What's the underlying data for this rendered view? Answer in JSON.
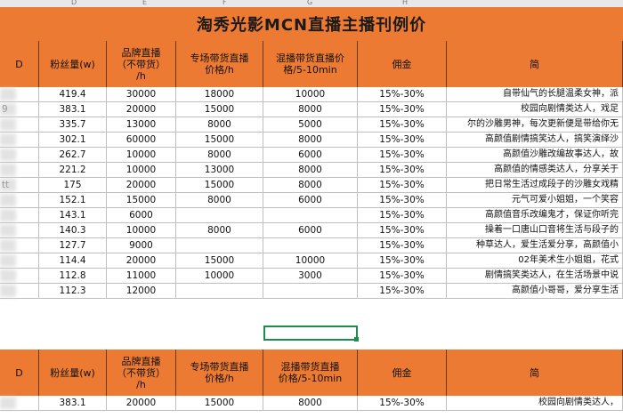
{
  "sheet": {
    "column_letters": [
      "D",
      "E",
      "F",
      "G",
      "H"
    ],
    "title": "淘秀光影MCN直播主播刊例价",
    "headers": [
      "D",
      "粉丝量(w)",
      "品牌直播\n（不带货）\n/h",
      "专场带货直播\n价格/h",
      "混播带货直播价\n格/5-10min",
      "佣金",
      "简"
    ],
    "rows": [
      {
        "name": "",
        "fans": "419.4",
        "brand": "30000",
        "special": "18000",
        "mixed": "10000",
        "commission": "15%-30%",
        "desc": "自带仙气的长腿温柔女神，派"
      },
      {
        "name": "9",
        "fans": "383.1",
        "brand": "20000",
        "special": "15000",
        "mixed": "8000",
        "commission": "15%-30%",
        "desc": "校园向剧情类达人，戏足"
      },
      {
        "name": "",
        "fans": "335.7",
        "brand": "13000",
        "special": "8000",
        "mixed": "5000",
        "commission": "15%-30%",
        "desc": "尔的沙雕男神，每次更新便是带给你无"
      },
      {
        "name": "",
        "fans": "302.1",
        "brand": "60000",
        "special": "15000",
        "mixed": "8000",
        "commission": "15%-30%",
        "desc": "高颜值剧情搞笑达人，搞笑演绎沙"
      },
      {
        "name": "",
        "fans": "262.7",
        "brand": "10000",
        "special": "8000",
        "mixed": "6000",
        "commission": "15%-30%",
        "desc": "高颜值沙雕改编故事达人，故"
      },
      {
        "name": "",
        "fans": "221.2",
        "brand": "10000",
        "special": "13000",
        "mixed": "8000",
        "commission": "15%-30%",
        "desc": "高颜值的情感类达人，分享关于"
      },
      {
        "name": "tt",
        "fans": "175",
        "brand": "20000",
        "special": "15000",
        "mixed": "8000",
        "commission": "15%-30%",
        "desc": "把日常生活过成段子的沙雕女戏精"
      },
      {
        "name": "",
        "fans": "152.1",
        "brand": "15000",
        "special": "8000",
        "mixed": "6000",
        "commission": "15%-30%",
        "desc": "元气可爱小姐姐，一个笑容"
      },
      {
        "name": "",
        "fans": "143.1",
        "brand": "6000",
        "special": "",
        "mixed": "",
        "commission": "15%-30%",
        "desc": "高颜值音乐改编鬼才，保证你听完"
      },
      {
        "name": "",
        "fans": "140.3",
        "brand": "10000",
        "special": "8000",
        "mixed": "6000",
        "commission": "15%-30%",
        "desc": "操着一口唐山口音将生活与段子的"
      },
      {
        "name": "",
        "fans": "127.7",
        "brand": "9000",
        "special": "",
        "mixed": "",
        "commission": "15%-30%",
        "desc": "种草达人，爱生活爱分享，高颜值小"
      },
      {
        "name": "",
        "fans": "114.4",
        "brand": "20000",
        "special": "15000",
        "mixed": "10000",
        "commission": "15%-30%",
        "desc": "02年美术生小姐姐，花式"
      },
      {
        "name": "",
        "fans": "112.8",
        "brand": "11000",
        "special": "10000",
        "mixed": "3000",
        "commission": "15%-30%",
        "desc": "剧情搞笑类达人，在生活场景中说"
      },
      {
        "name": "",
        "fans": "112.3",
        "brand": "12000",
        "special": "",
        "mixed": "",
        "commission": "15%-30%",
        "desc": "高颜值小哥哥，爱分享生活"
      }
    ],
    "second_headers": [
      "D",
      "粉丝量(w)",
      "品牌直播\n（不带货）\n/h",
      "专场带货直播\n价格/h",
      "混播带货直播\n价格/5-10min",
      "佣金",
      "简"
    ],
    "second_rows": [
      {
        "name": "",
        "fans": "383.1",
        "brand": "20000",
        "special": "15000",
        "mixed": "8000",
        "commission": "15%-30%",
        "desc": "校园向剧情类达人，"
      }
    ]
  }
}
